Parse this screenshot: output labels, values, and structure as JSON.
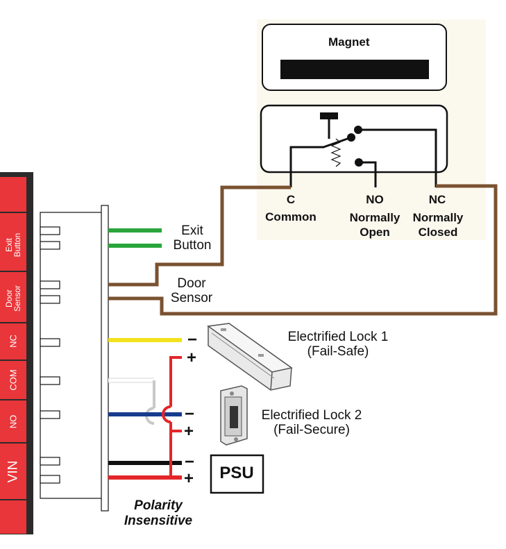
{
  "colors": {
    "terminal_red": "#e8363a",
    "terminal_dark": "#2b2b2b",
    "sensor_panel": "#fbf8ee",
    "green": "#2aa53c",
    "brown": "#7a5230",
    "yellow": "#f2e21c",
    "blue": "#173c8f",
    "red": "#e32629",
    "black": "#111111",
    "grey": "#c8c8c8"
  },
  "terminal_block": {
    "sections": [
      {
        "label": "Exit\nButton"
      },
      {
        "label": "Door\nSensor"
      },
      {
        "label": "NC"
      },
      {
        "label": "COM"
      },
      {
        "label": "NO"
      },
      {
        "label": "VIN"
      }
    ]
  },
  "sensor": {
    "magnet_label": "Magnet",
    "contacts": [
      {
        "code": "C",
        "desc": "Common"
      },
      {
        "code": "NO",
        "desc": "Normally\nOpen"
      },
      {
        "code": "NC",
        "desc": "Normally\nClosed"
      }
    ]
  },
  "wire_labels": {
    "exit_button": "Exit\nButton",
    "door_sensor": "Door\nSensor",
    "polarity": "Polarity\nInsensitive"
  },
  "devices": {
    "lock1": "Electrified Lock 1\n(Fail-Safe)",
    "lock2": "Electrified Lock 2\n(Fail-Secure)",
    "psu": "PSU"
  },
  "polarity_marks": {
    "minus": "−",
    "plus": "+"
  }
}
